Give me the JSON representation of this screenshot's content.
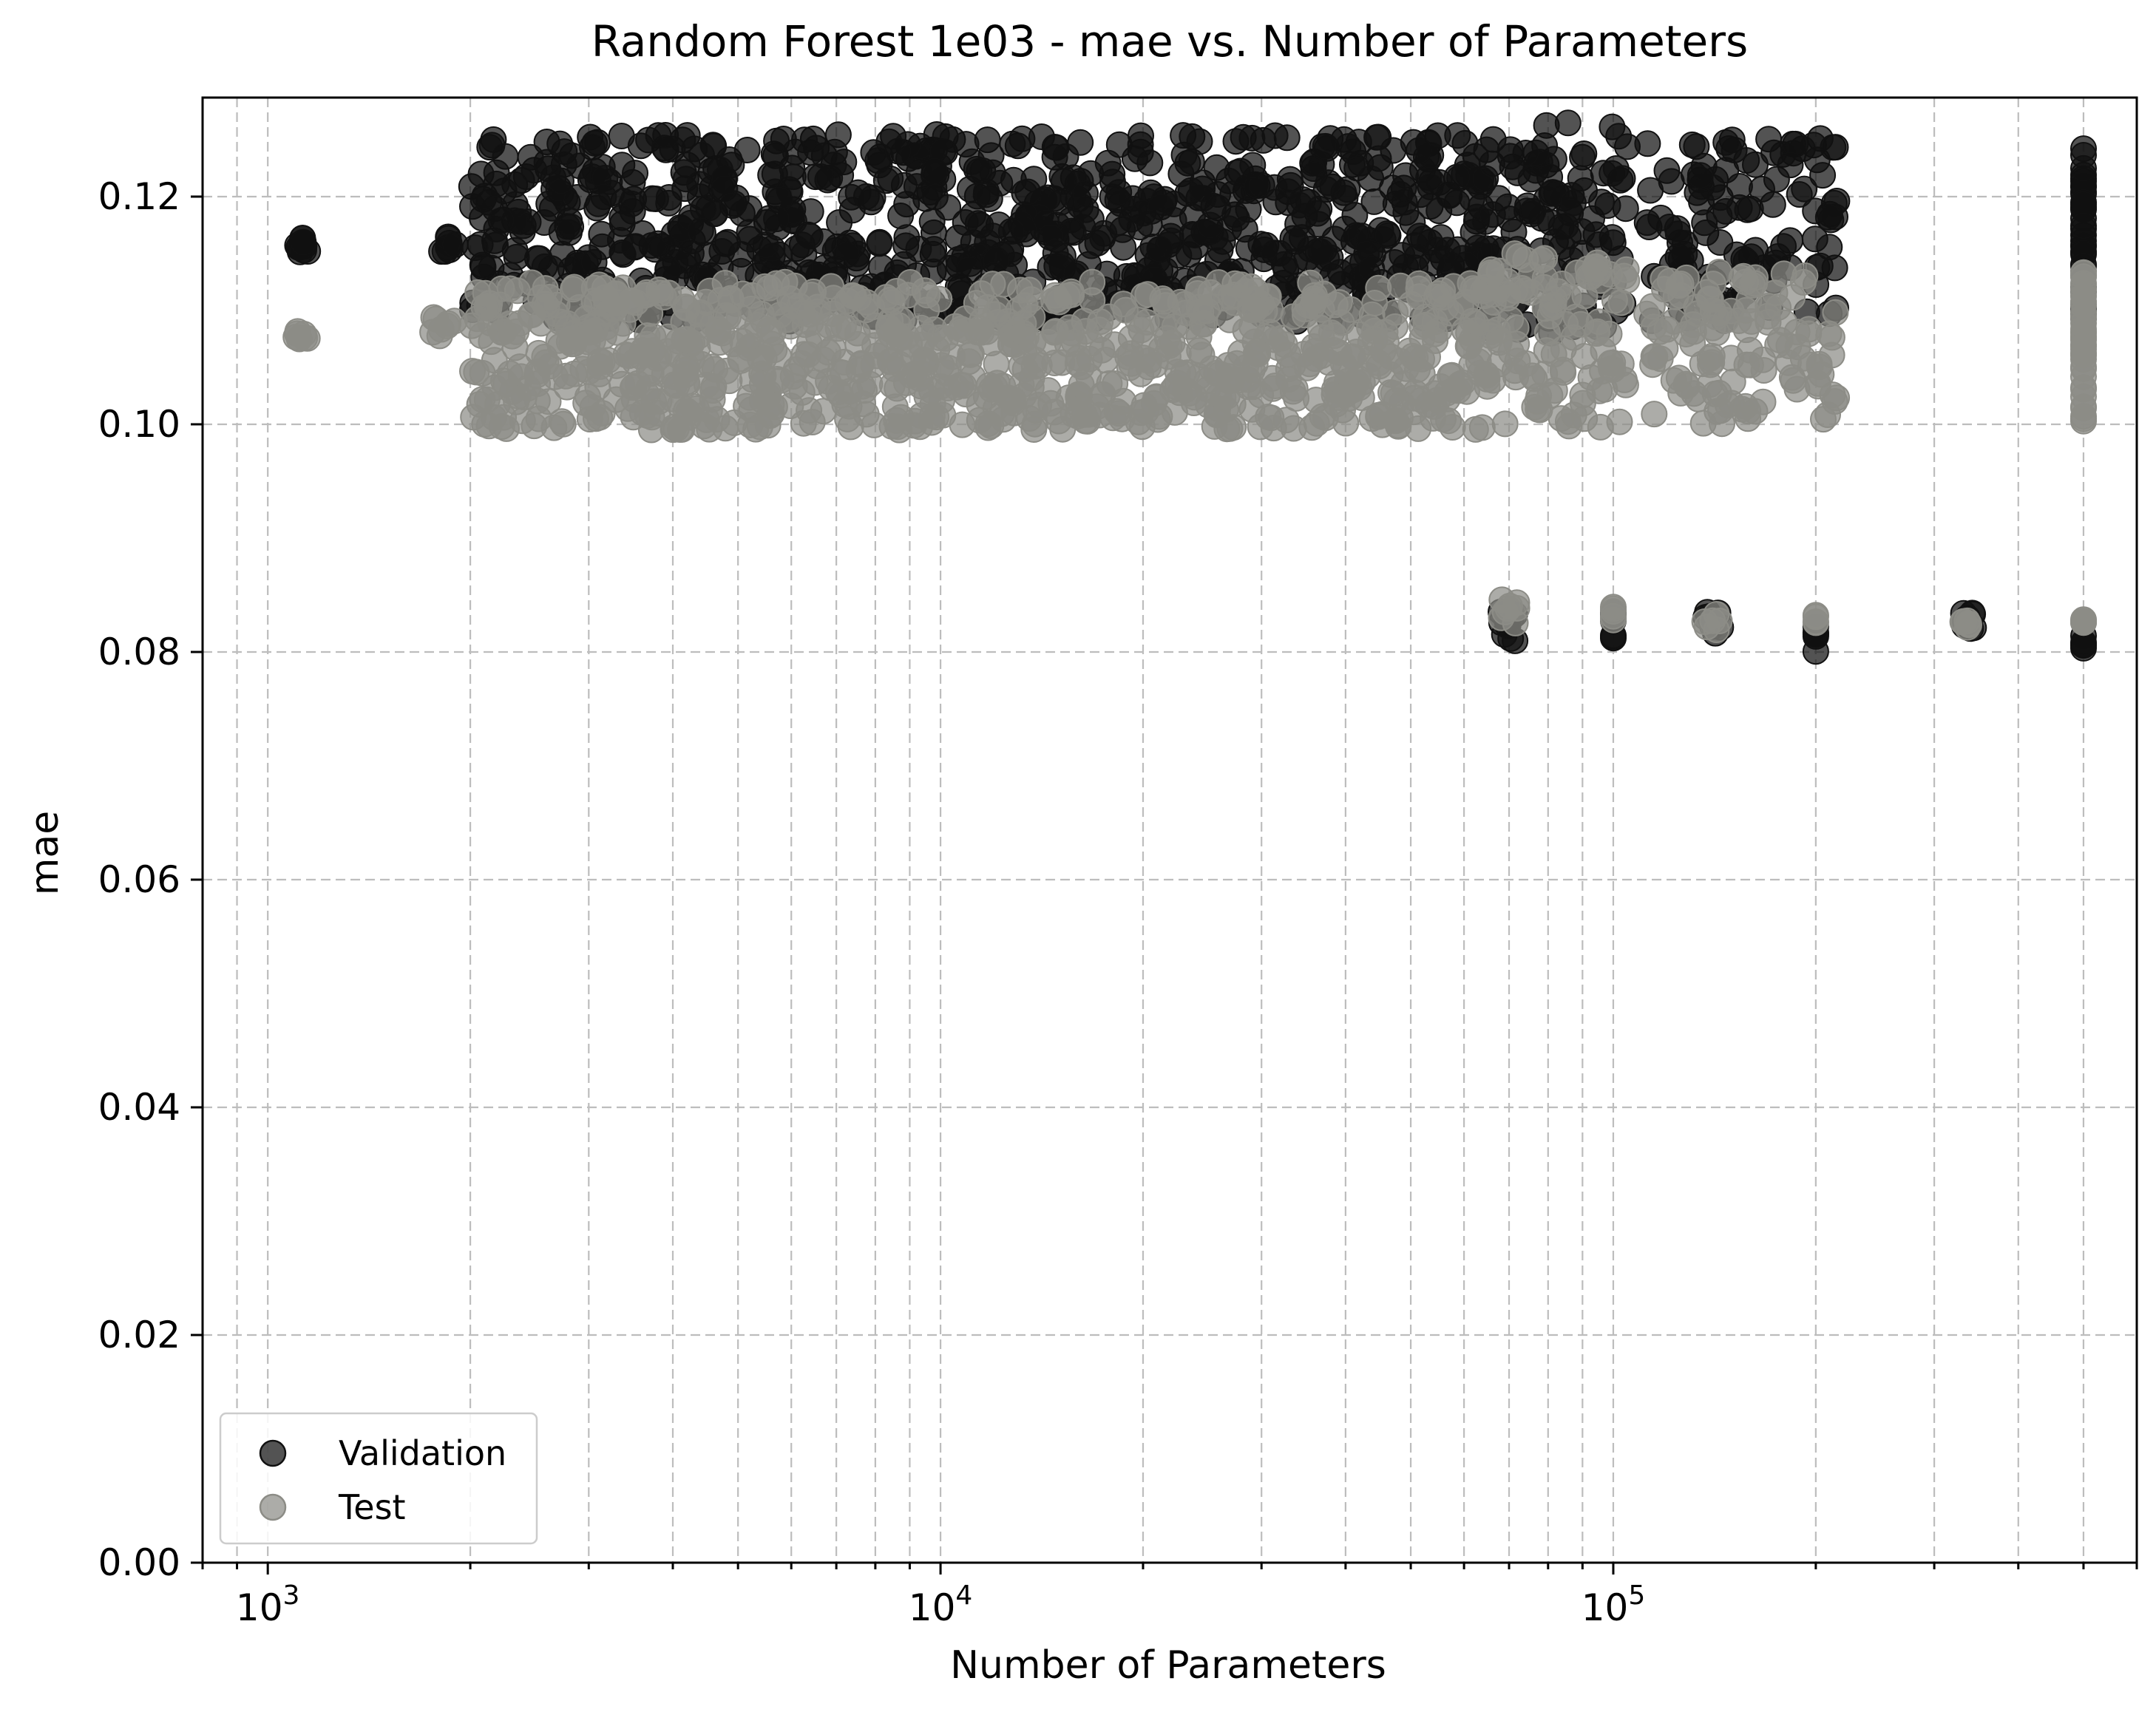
{
  "chart_data": {
    "type": "scatter",
    "title": "Random Forest 1e03 - mae vs. Number of Parameters",
    "xlabel": "Number of Parameters",
    "ylabel": "mae",
    "x_scale": "log",
    "xlim": [
      800,
      600000
    ],
    "ylim": [
      0.0,
      0.1287
    ],
    "x_ticks": [
      {
        "value": 1000,
        "base": "10",
        "exp": "3"
      },
      {
        "value": 10000,
        "base": "10",
        "exp": "4"
      },
      {
        "value": 100000,
        "base": "10",
        "exp": "5"
      }
    ],
    "y_ticks": [
      "0.00",
      "0.02",
      "0.04",
      "0.06",
      "0.08",
      "0.10",
      "0.12"
    ],
    "grid": true,
    "legend_position": "lower-left",
    "series": [
      {
        "name": "Validation",
        "color": "#111111",
        "clusters": [
          {
            "x_min": 1100,
            "x_max": 1150,
            "y_min": 0.115,
            "y_max": 0.1165,
            "count": 12
          },
          {
            "x_min": 1800,
            "x_max": 1900,
            "y_min": 0.115,
            "y_max": 0.1165,
            "count": 8
          },
          {
            "x_min": 2000,
            "x_max": 65000,
            "y_min": 0.109,
            "y_max": 0.1255,
            "count": 900
          },
          {
            "x_min": 65000,
            "x_max": 105000,
            "y_min": 0.108,
            "y_max": 0.1265,
            "count": 110
          },
          {
            "x_min": 112000,
            "x_max": 215000,
            "y_min": 0.109,
            "y_max": 0.1255,
            "count": 120
          },
          {
            "x_min": 500000,
            "x_max": 500000,
            "y_min": 0.1085,
            "y_max": 0.1245,
            "count": 40
          },
          {
            "x_min": 68000,
            "x_max": 72000,
            "y_min": 0.0805,
            "y_max": 0.084,
            "count": 10
          },
          {
            "x_min": 100000,
            "x_max": 100000,
            "y_min": 0.0805,
            "y_max": 0.0835,
            "count": 6
          },
          {
            "x_min": 136000,
            "x_max": 145000,
            "y_min": 0.081,
            "y_max": 0.084,
            "count": 8
          },
          {
            "x_min": 200000,
            "x_max": 200000,
            "y_min": 0.08,
            "y_max": 0.0825,
            "count": 6
          },
          {
            "x_min": 330000,
            "x_max": 350000,
            "y_min": 0.0815,
            "y_max": 0.0835,
            "count": 8
          },
          {
            "x_min": 500000,
            "x_max": 500000,
            "y_min": 0.08,
            "y_max": 0.0815,
            "count": 5
          }
        ]
      },
      {
        "name": "Test",
        "color": "#8c8c86",
        "clusters": [
          {
            "x_min": 1100,
            "x_max": 1150,
            "y_min": 0.1075,
            "y_max": 0.1085,
            "count": 8
          },
          {
            "x_min": 1750,
            "x_max": 1950,
            "y_min": 0.1075,
            "y_max": 0.1095,
            "count": 8
          },
          {
            "x_min": 2000,
            "x_max": 65000,
            "y_min": 0.0995,
            "y_max": 0.1125,
            "count": 900
          },
          {
            "x_min": 65000,
            "x_max": 105000,
            "y_min": 0.0995,
            "y_max": 0.115,
            "count": 110
          },
          {
            "x_min": 112000,
            "x_max": 215000,
            "y_min": 0.0995,
            "y_max": 0.1135,
            "count": 120
          },
          {
            "x_min": 500000,
            "x_max": 500000,
            "y_min": 0.1,
            "y_max": 0.1135,
            "count": 40
          },
          {
            "x_min": 68000,
            "x_max": 72000,
            "y_min": 0.082,
            "y_max": 0.0848,
            "count": 8
          },
          {
            "x_min": 100000,
            "x_max": 100000,
            "y_min": 0.082,
            "y_max": 0.0845,
            "count": 5
          },
          {
            "x_min": 136000,
            "x_max": 145000,
            "y_min": 0.0815,
            "y_max": 0.0835,
            "count": 6
          },
          {
            "x_min": 200000,
            "x_max": 200000,
            "y_min": 0.0825,
            "y_max": 0.0835,
            "count": 4
          },
          {
            "x_min": 330000,
            "x_max": 350000,
            "y_min": 0.082,
            "y_max": 0.083,
            "count": 6
          },
          {
            "x_min": 500000,
            "x_max": 500000,
            "y_min": 0.0815,
            "y_max": 0.083,
            "count": 5
          }
        ]
      }
    ]
  }
}
